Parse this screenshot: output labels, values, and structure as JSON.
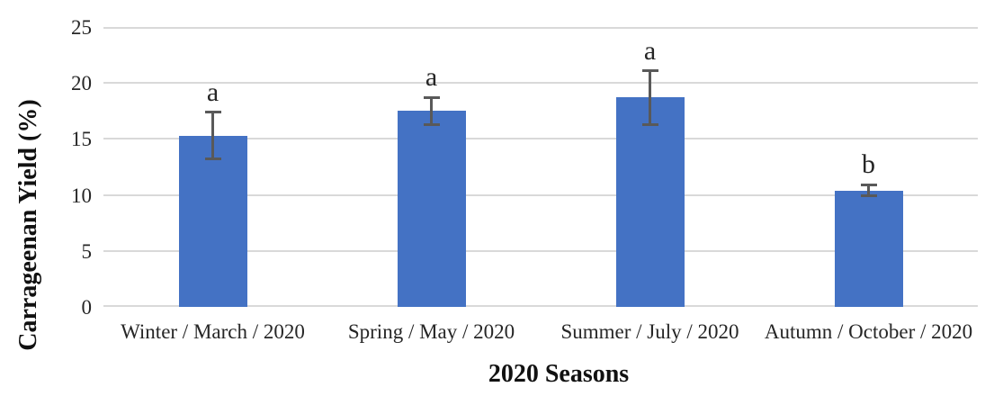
{
  "chart_data": {
    "type": "bar",
    "title": "",
    "xlabel": "2020 Seasons",
    "ylabel": "Carrageenan Yield (%)",
    "categories": [
      "Winter / March / 2020",
      "Spring / May / 2020",
      "Summer / July / 2020",
      "Autumn / October / 2020"
    ],
    "values": [
      15.3,
      17.5,
      18.7,
      10.4
    ],
    "error_bars": [
      2.1,
      1.2,
      2.4,
      0.5
    ],
    "significance_labels": [
      "a",
      "a",
      "a",
      "b"
    ],
    "ylim": [
      0,
      25
    ],
    "yticks": [
      0,
      5,
      10,
      15,
      20,
      25
    ],
    "grid": true,
    "legend": "none",
    "bar_color": "#4472C4",
    "error_bar_color": "#595959",
    "gridline_color": "#D9D9D9",
    "text_color": "#262626"
  }
}
